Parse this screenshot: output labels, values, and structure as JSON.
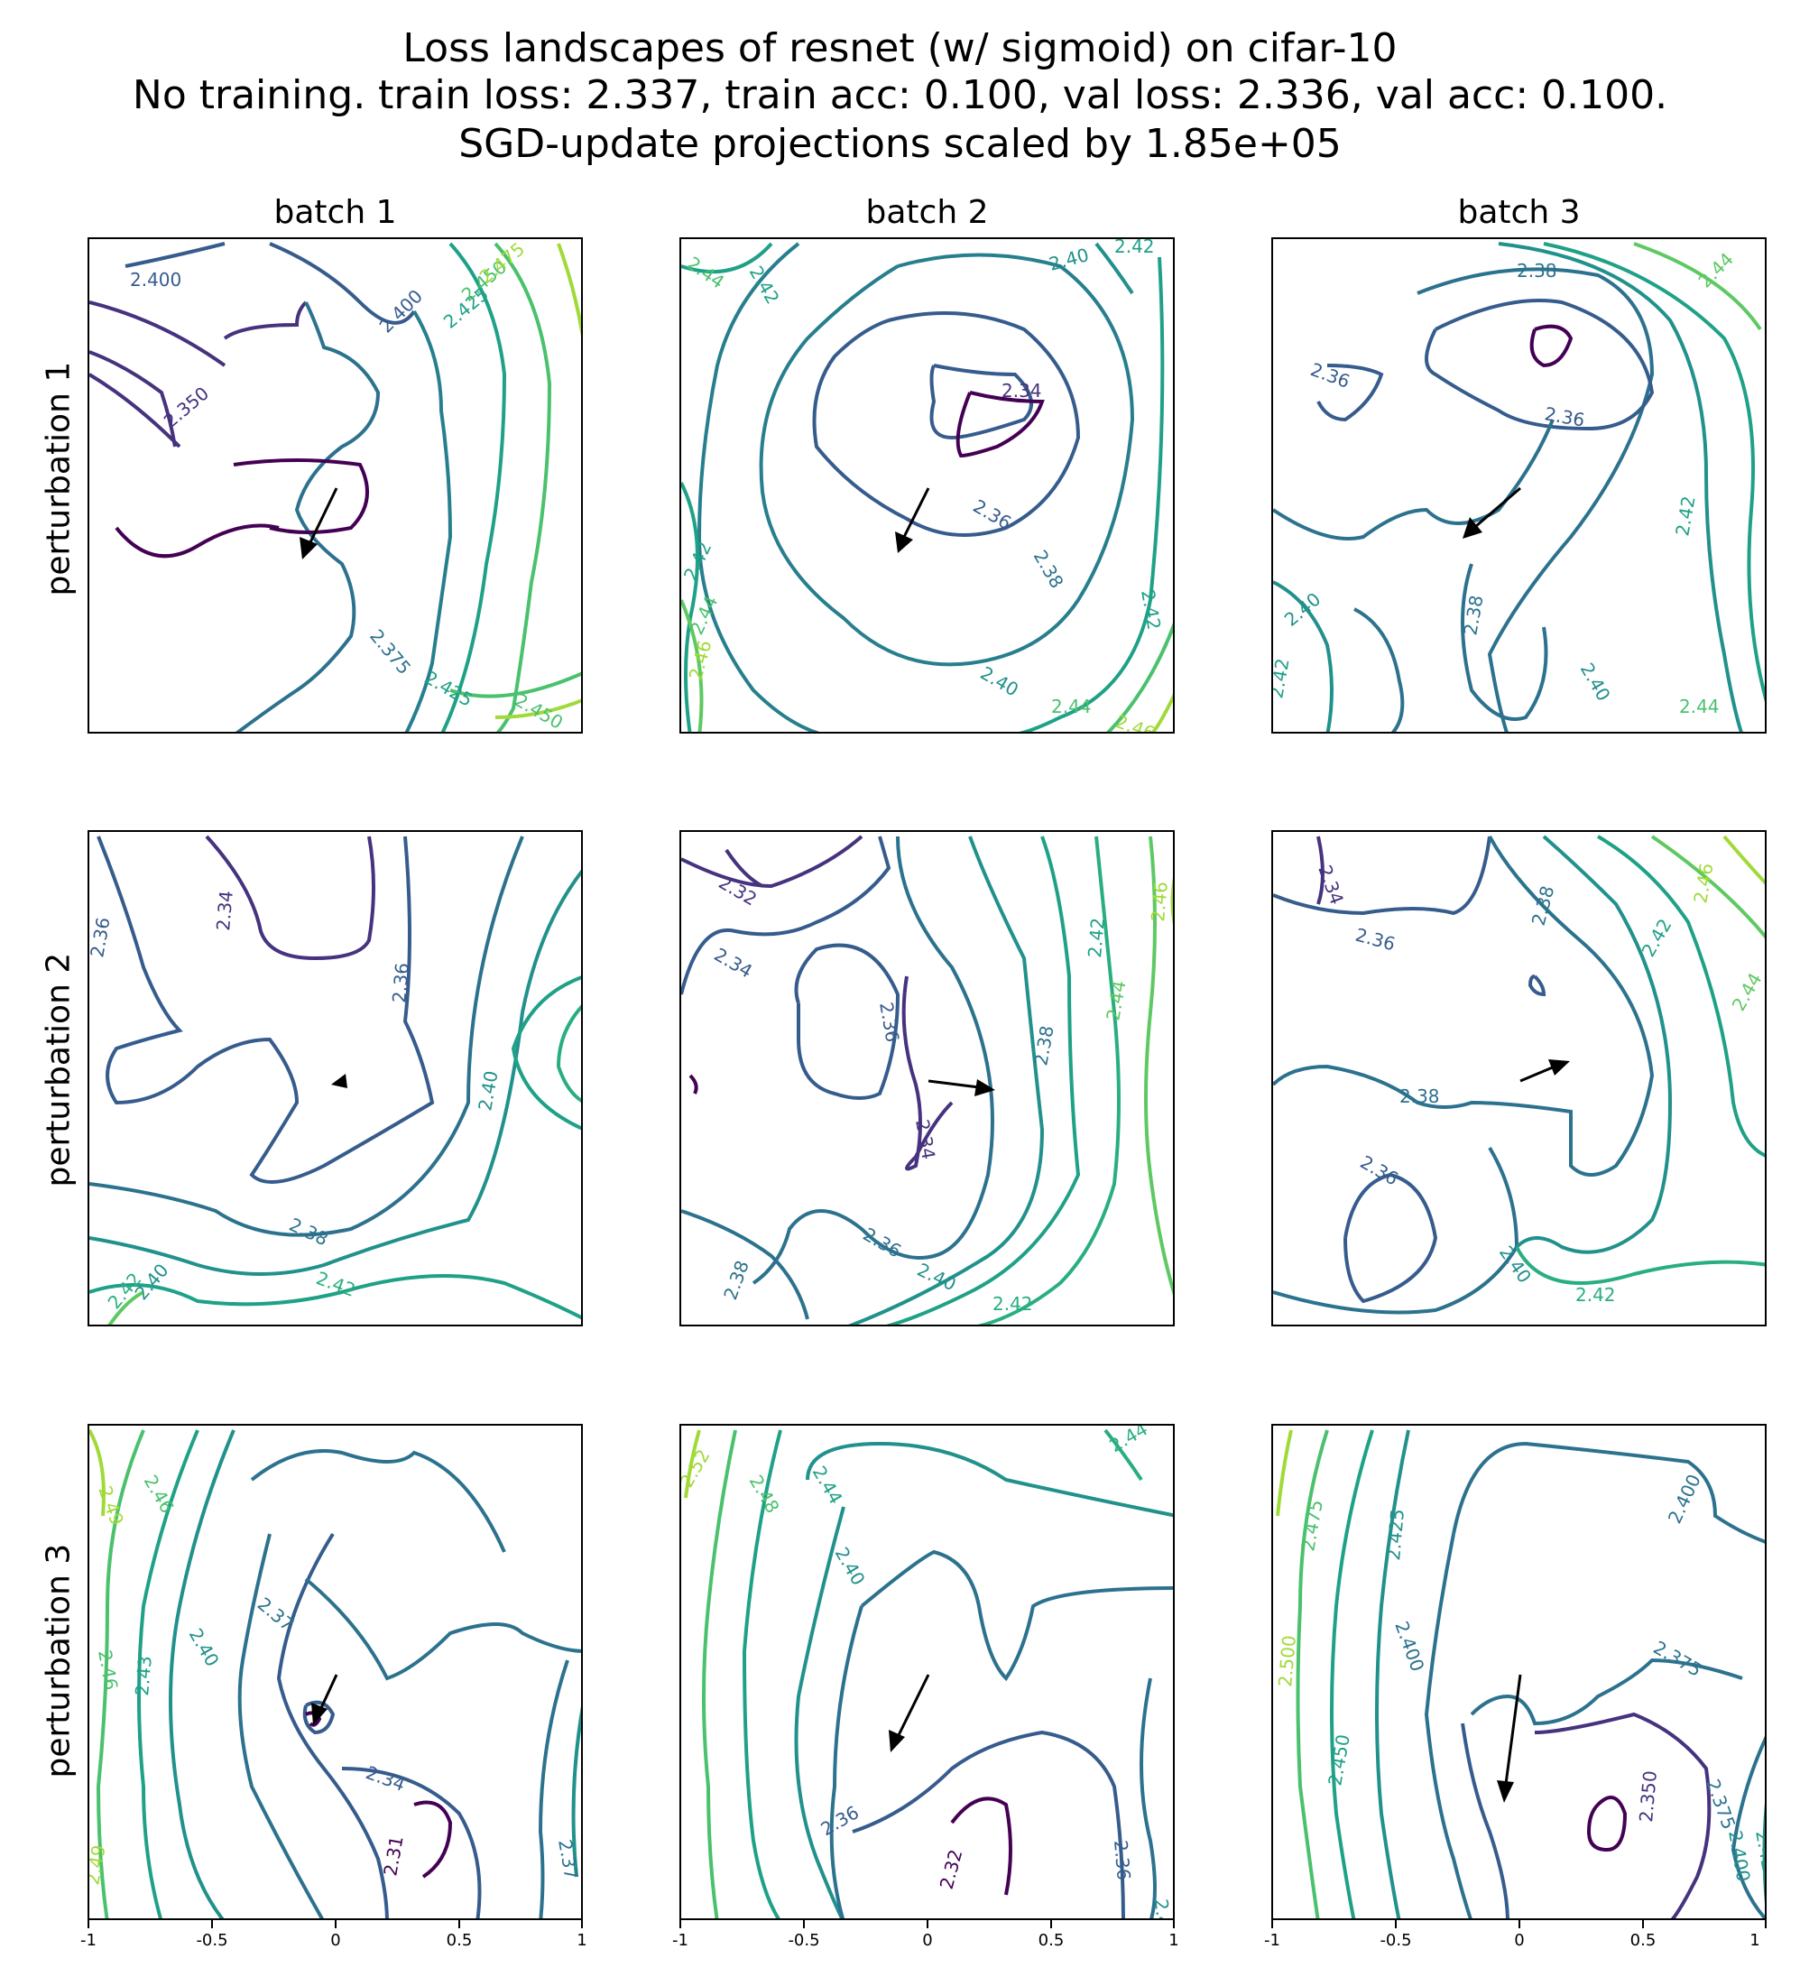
{
  "title_lines": [
    "Loss landscapes of resnet (w/ sigmoid) on cifar-10",
    "No training. train loss: 2.337, train acc: 0.100, val loss: 2.336, val acc: 0.100.",
    "SGD-update projections scaled by 1.85e+05"
  ],
  "col_titles": [
    "batch 1",
    "batch 2",
    "batch 3"
  ],
  "row_labels": [
    "perturbation 1",
    "perturbation 2",
    "perturbation 3"
  ],
  "x_ticks": [
    "-1",
    "-0.5",
    "0",
    "0.5",
    "1"
  ],
  "chart_data": [
    {
      "type": "contour",
      "row": 1,
      "col": 1,
      "xlim": [
        -1,
        1
      ],
      "ylim": [
        -1,
        1
      ],
      "level_labels": [
        "2.400",
        "2.400",
        "2.350",
        "2.425",
        "2.450",
        "2.475",
        "2.375",
        "2.425",
        "2.450"
      ],
      "arrow": {
        "from": [
          0,
          0
        ],
        "to": [
          -0.13,
          -0.28
        ]
      }
    },
    {
      "type": "contour",
      "row": 1,
      "col": 2,
      "xlim": [
        -1,
        1
      ],
      "ylim": [
        -1,
        1
      ],
      "level_labels": [
        "2.44",
        "2.42",
        "2.40",
        "2.42",
        "2.34",
        "2.36",
        "2.38",
        "2.42",
        "2.44",
        "2.46",
        "2.40",
        "2.44",
        "2.46",
        "2.42"
      ],
      "arrow": {
        "from": [
          0,
          0
        ],
        "to": [
          -0.14,
          -0.26
        ]
      }
    },
    {
      "type": "contour",
      "row": 1,
      "col": 3,
      "xlim": [
        -1,
        1
      ],
      "ylim": [
        -1,
        1
      ],
      "level_labels": [
        "2.38",
        "2.36",
        "2.36",
        "2.42",
        "2.40",
        "2.38",
        "2.40",
        "2.42",
        "2.44",
        "2.44"
      ],
      "arrow": {
        "from": [
          0,
          0
        ],
        "to": [
          -0.22,
          -0.22
        ]
      }
    },
    {
      "type": "contour",
      "row": 2,
      "col": 1,
      "xlim": [
        -1,
        1
      ],
      "ylim": [
        -1,
        1
      ],
      "level_labels": [
        "2.36",
        "2.34",
        "2.36",
        "2.38",
        "2.40",
        "2.42",
        "2.40",
        "2.42"
      ],
      "arrow": {
        "from": [
          0,
          0
        ],
        "to": [
          0.02,
          0.03
        ]
      }
    },
    {
      "type": "contour",
      "row": 2,
      "col": 2,
      "xlim": [
        -1,
        1
      ],
      "ylim": [
        -1,
        1
      ],
      "level_labels": [
        "2.32",
        "2.34",
        "2.36",
        "2.34",
        "2.38",
        "2.42",
        "2.44",
        "2.46",
        "2.36",
        "2.38",
        "2.40",
        "2.42"
      ],
      "arrow": {
        "from": [
          0,
          0
        ],
        "to": [
          0.26,
          -0.04
        ]
      }
    },
    {
      "type": "contour",
      "row": 2,
      "col": 3,
      "xlim": [
        -1,
        1
      ],
      "ylim": [
        -1,
        1
      ],
      "level_labels": [
        "2.34",
        "2.36",
        "2.38",
        "2.42",
        "2.46",
        "2.44",
        "2.38",
        "2.36",
        "2.40",
        "2.42"
      ],
      "arrow": {
        "from": [
          0,
          0
        ],
        "to": [
          0.18,
          0.07
        ]
      }
    },
    {
      "type": "contour",
      "row": 3,
      "col": 1,
      "xlim": [
        -1,
        1
      ],
      "ylim": [
        -1,
        1
      ],
      "level_labels": [
        "2.49",
        "2.46",
        "2.37",
        "2.40",
        "2.43",
        "2.46",
        "2.34",
        "2.31",
        "2.37",
        "2.49"
      ],
      "arrow": {
        "from": [
          0,
          0
        ],
        "to": [
          -0.1,
          -0.22
        ]
      }
    },
    {
      "type": "contour",
      "row": 3,
      "col": 2,
      "xlim": [
        -1,
        1
      ],
      "ylim": [
        -1,
        1
      ],
      "level_labels": [
        "2.52",
        "2.48",
        "2.44",
        "2.40",
        "2.44",
        "2.36",
        "2.32",
        "2.36",
        "2.40"
      ],
      "arrow": {
        "from": [
          0,
          0
        ],
        "to": [
          -0.16,
          -0.34
        ]
      }
    },
    {
      "type": "contour",
      "row": 3,
      "col": 3,
      "xlim": [
        -1,
        1
      ],
      "ylim": [
        -1,
        1
      ],
      "level_labels": [
        "2.475",
        "2.425",
        "2.400",
        "2.500",
        "2.400",
        "2.375",
        "2.450",
        "2.350",
        "2.375",
        "2.400",
        "2.425"
      ],
      "arrow": {
        "from": [
          0,
          0
        ],
        "to": [
          -0.08,
          -0.52
        ]
      }
    }
  ],
  "colors": {
    "c230": "#440154",
    "c234": "#3b528b",
    "c236": "#3b528b",
    "c238": "#2c728e",
    "c240": "#21918c",
    "c242": "#28ae80",
    "c244": "#5ec962",
    "c246": "#addc30",
    "dark": "#46327e",
    "mid": "#365c8d",
    "teal": "#277f8e",
    "green": "#1fa187",
    "lime": "#4ac16d",
    "yellow": "#a0da39"
  }
}
